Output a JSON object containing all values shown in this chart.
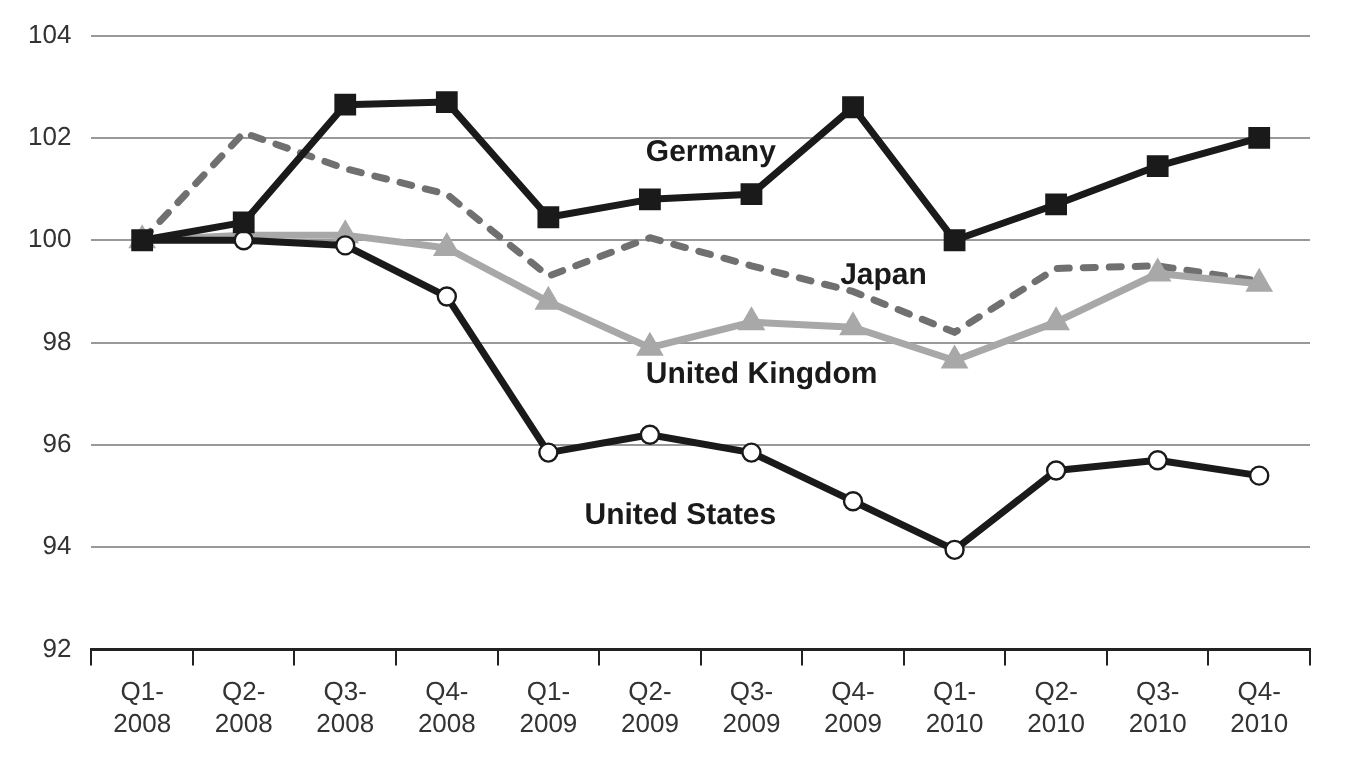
{
  "chart_data": {
    "type": "line",
    "categories": [
      "Q1-2008",
      "Q2-2008",
      "Q3-2008",
      "Q4-2008",
      "Q1-2009",
      "Q2-2009",
      "Q3-2009",
      "Q4-2009",
      "Q1-2010",
      "Q2-2010",
      "Q3-2010",
      "Q4-2010"
    ],
    "series": [
      {
        "name": "Germany",
        "color": "#1a1a1a",
        "marker": "square",
        "line_style": "solid",
        "values": [
          100,
          100.35,
          102.65,
          102.7,
          100.45,
          100.8,
          100.9,
          102.6,
          100,
          100.7,
          101.45,
          102
        ]
      },
      {
        "name": "Japan",
        "color": "#707070",
        "marker": "none",
        "line_style": "dashed",
        "values": [
          100,
          102.1,
          101.4,
          100.9,
          99.3,
          100.05,
          99.5,
          99.0,
          98.2,
          99.45,
          99.5,
          99.2
        ]
      },
      {
        "name": "United Kingdom",
        "color": "#a8a8a8",
        "marker": "triangle",
        "line_style": "solid",
        "values": [
          100,
          100.1,
          100.1,
          99.85,
          98.8,
          97.9,
          98.4,
          98.3,
          97.65,
          98.4,
          99.35,
          99.15
        ]
      },
      {
        "name": "United States",
        "color": "#1a1a1a",
        "marker": "circle",
        "line_style": "solid",
        "values": [
          100,
          100,
          99.9,
          98.9,
          95.85,
          96.2,
          95.85,
          94.9,
          93.95,
          95.5,
          95.7,
          95.4
        ]
      }
    ],
    "ylim": [
      92,
      104
    ],
    "yticks": [
      92,
      94,
      96,
      98,
      100,
      102,
      104
    ],
    "grid": "y",
    "legend": false
  }
}
